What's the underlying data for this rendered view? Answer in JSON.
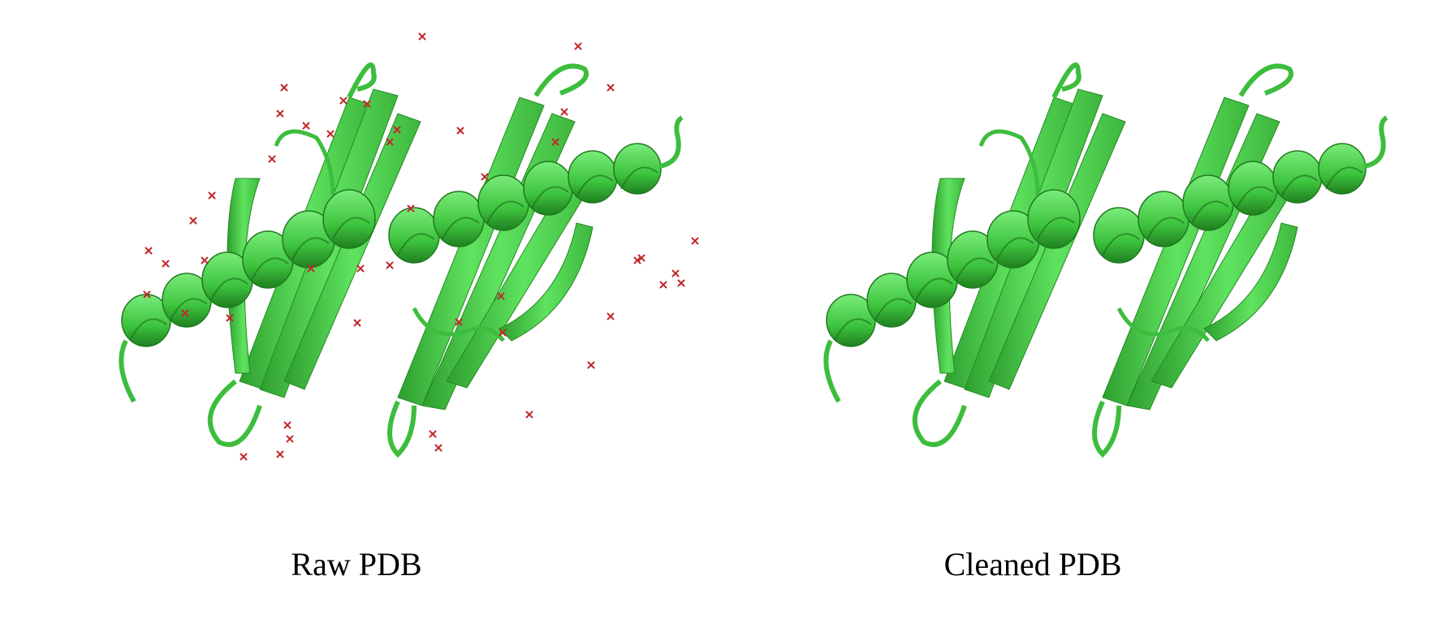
{
  "panels": [
    {
      "id": "raw",
      "caption": "Raw PDB",
      "show_waters": true
    },
    {
      "id": "cleaned",
      "caption": "Cleaned PDB",
      "show_waters": false
    }
  ],
  "colors": {
    "ribbon": "#4fd64f",
    "ribbon_dark": "#2a9a2a",
    "ribbon_light": "#8df08d",
    "water": "#c0282a",
    "background": "#ffffff"
  }
}
